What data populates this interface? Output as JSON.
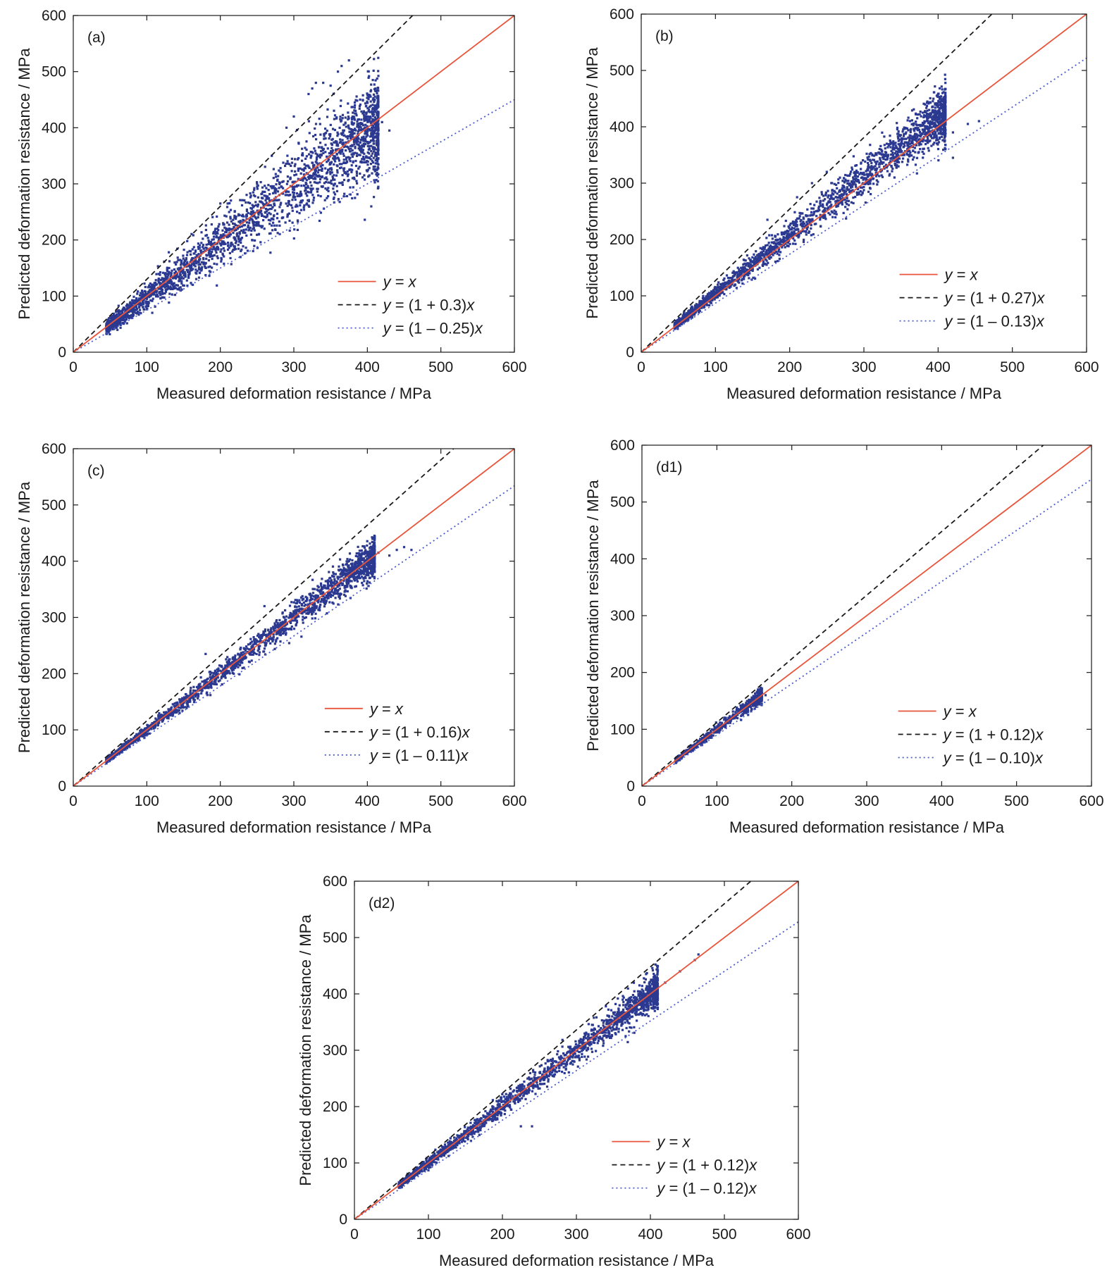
{
  "figure": {
    "marker_color": "#2b3990",
    "line_colors": {
      "identity": "#e8553a",
      "upper": "#1a1a1a",
      "lower": "#4b5bd0"
    }
  },
  "chart_data": [
    {
      "type": "scatter",
      "panel_label": "(a)",
      "xlabel": "Measured deformation resistance / MPa",
      "ylabel": "Predicted deformation resistance / MPa",
      "xlim": [
        0,
        600
      ],
      "ylim": [
        0,
        600
      ],
      "xticks": [
        0,
        100,
        200,
        300,
        400,
        500,
        600
      ],
      "yticks": [
        0,
        100,
        200,
        300,
        400,
        500,
        600
      ],
      "upper_factor": 1.3,
      "lower_factor": 0.75,
      "legend": {
        "identity": "y = x",
        "upper": "y = (1 + 0.3)x",
        "lower": "y = (1 – 0.25)x"
      },
      "legend_position": "lower-right",
      "scatter": {
        "x_range": [
          45,
          415
        ],
        "spread_frac": 0.11,
        "bias_frac": -0.02,
        "count": 2600
      },
      "outliers": [
        [
          130,
          178
        ],
        [
          155,
          198
        ],
        [
          200,
          265
        ],
        [
          210,
          265
        ],
        [
          250,
          300
        ],
        [
          270,
          350
        ],
        [
          290,
          400
        ],
        [
          300,
          420
        ],
        [
          320,
          460
        ],
        [
          325,
          470
        ],
        [
          330,
          480
        ],
        [
          340,
          480
        ],
        [
          350,
          475
        ],
        [
          360,
          500
        ],
        [
          365,
          510
        ],
        [
          375,
          520
        ],
        [
          400,
          415
        ],
        [
          420,
          410
        ],
        [
          430,
          395
        ],
        [
          120,
          115
        ],
        [
          380,
          310
        ]
      ]
    },
    {
      "type": "scatter",
      "panel_label": "(b)",
      "xlabel": "Measured deformation resistance  / MPa",
      "ylabel": "Predicted deformation resistance / MPa",
      "xlim": [
        0,
        600
      ],
      "ylim": [
        0,
        600
      ],
      "xticks": [
        0,
        100,
        200,
        300,
        400,
        500,
        600
      ],
      "yticks": [
        0,
        100,
        200,
        300,
        400,
        500,
        600
      ],
      "upper_factor": 1.27,
      "lower_factor": 0.87,
      "legend": {
        "identity": "y = x",
        "upper": "y = (1 + 0.27)x",
        "lower": "y = (1 – 0.13)x"
      },
      "legend_position": "lower-right",
      "scatter": {
        "x_range": [
          45,
          410
        ],
        "spread_frac": 0.06,
        "bias_frac": 0.04,
        "count": 2300
      },
      "outliers": [
        [
          170,
          235
        ],
        [
          210,
          275
        ],
        [
          230,
          300
        ],
        [
          250,
          320
        ],
        [
          380,
          395
        ],
        [
          400,
          400
        ],
        [
          420,
          390
        ],
        [
          440,
          405
        ],
        [
          455,
          410
        ],
        [
          420,
          345
        ]
      ]
    },
    {
      "type": "scatter",
      "panel_label": "(c)",
      "xlabel": "Measured deformation resistance / MPa",
      "ylabel": "Predicted deformation resistance / MPa",
      "xlim": [
        0,
        600
      ],
      "ylim": [
        0,
        600
      ],
      "xticks": [
        0,
        100,
        200,
        300,
        400,
        500,
        600
      ],
      "yticks": [
        0,
        100,
        200,
        300,
        400,
        500,
        600
      ],
      "upper_factor": 1.16,
      "lower_factor": 0.89,
      "legend": {
        "identity": "y = x",
        "upper": "y = (1 + 0.16)x",
        "lower": "y = (1 – 0.11)x"
      },
      "legend_position": "lower-right",
      "scatter": {
        "x_range": [
          45,
          410
        ],
        "spread_frac": 0.04,
        "bias_frac": 0.0,
        "count": 2200
      },
      "outliers": [
        [
          415,
          415
        ],
        [
          430,
          410
        ],
        [
          440,
          420
        ],
        [
          450,
          425
        ],
        [
          460,
          420
        ],
        [
          180,
          235
        ],
        [
          260,
          320
        ]
      ]
    },
    {
      "type": "scatter",
      "panel_label": "(d1)",
      "xlabel": "Measured deformation resistance / MPa",
      "ylabel": "Predicted deformation resistance / MPa",
      "xlim": [
        0,
        600
      ],
      "ylim": [
        0,
        600
      ],
      "xticks": [
        0,
        100,
        200,
        300,
        400,
        500,
        600
      ],
      "yticks": [
        0,
        100,
        200,
        300,
        400,
        500,
        600
      ],
      "upper_factor": 1.12,
      "lower_factor": 0.9,
      "legend": {
        "identity": "y = x",
        "upper": "y = (1 + 0.12)x",
        "lower": "y = (1 – 0.10)x"
      },
      "legend_position": "lower-right",
      "scatter": {
        "x_range": [
          45,
          160
        ],
        "spread_frac": 0.04,
        "bias_frac": 0.0,
        "count": 700
      },
      "outliers": [
        [
          165,
          160
        ],
        [
          155,
          160
        ]
      ]
    },
    {
      "type": "scatter",
      "panel_label": "(d2)",
      "xlabel": "Measured deformation resistance / MPa",
      "ylabel": "Predicted deformation resistance / MPa",
      "xlim": [
        0,
        600
      ],
      "ylim": [
        0,
        600
      ],
      "xticks": [
        0,
        100,
        200,
        300,
        400,
        500,
        600
      ],
      "yticks": [
        0,
        100,
        200,
        300,
        400,
        500,
        600
      ],
      "upper_factor": 1.12,
      "lower_factor": 0.88,
      "legend": {
        "identity": "y = x",
        "upper": "y = (1 + 0.12)x",
        "lower": "y = (1 – 0.12)x"
      },
      "legend_position": "lower-right",
      "scatter": {
        "x_range": [
          60,
          410
        ],
        "spread_frac": 0.04,
        "bias_frac": 0.0,
        "count": 2000
      },
      "outliers": [
        [
          420,
          420
        ],
        [
          440,
          440
        ],
        [
          460,
          460
        ],
        [
          465,
          470
        ],
        [
          225,
          165
        ],
        [
          240,
          165
        ]
      ]
    }
  ]
}
